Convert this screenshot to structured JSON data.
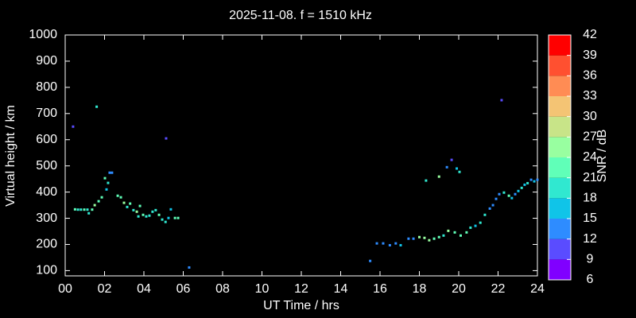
{
  "chart_data": {
    "type": "scatter",
    "title": "2025-11-08. f = 1510 kHz",
    "xlabel": "UT Time / hrs",
    "ylabel": "Virtual height / km",
    "clabel": "SNR / dB",
    "xlim": [
      0,
      24
    ],
    "xticks": [
      {
        "value": 0,
        "label": "00"
      },
      {
        "value": 2,
        "label": "02"
      },
      {
        "value": 4,
        "label": "04"
      },
      {
        "value": 6,
        "label": "06"
      },
      {
        "value": 8,
        "label": "08"
      },
      10,
      12,
      14,
      16,
      18,
      20,
      22,
      24
    ],
    "ylim": [
      80,
      1000
    ],
    "yticks": [
      100,
      200,
      300,
      400,
      500,
      600,
      700,
      800,
      900,
      1000
    ],
    "clim": [
      6,
      42
    ],
    "cticks": [
      6,
      9,
      12,
      15,
      18,
      21,
      24,
      27,
      30,
      33,
      36,
      39,
      42
    ],
    "colormap": [
      "#8000ff",
      "#5a4cff",
      "#2e8cff",
      "#10c4e8",
      "#30e8d0",
      "#60ffb8",
      "#98ffa0",
      "#c8e488",
      "#f4c474",
      "#ff8c54",
      "#ff5030",
      "#ff0000"
    ],
    "series": [
      {
        "name": "SNR",
        "x": [
          0.4,
          0.5,
          0.65,
          0.8,
          0.97,
          1.13,
          1.2,
          1.37,
          1.5,
          1.7,
          1.86,
          1.6,
          2.02,
          2.1,
          2.18,
          2.26,
          2.38,
          2.67,
          2.83,
          2.99,
          3.15,
          3.3,
          3.47,
          3.64,
          3.72,
          3.8,
          3.96,
          4.12,
          4.28,
          4.44,
          4.6,
          4.77,
          4.93,
          5.1,
          5.13,
          5.25,
          5.37,
          5.58,
          5.74,
          6.3,
          15.5,
          15.84,
          16.16,
          16.5,
          16.8,
          17.05,
          17.45,
          17.7,
          18.0,
          18.26,
          18.5,
          18.75,
          19.0,
          19.23,
          19.47,
          19.8,
          20.1,
          20.4,
          20.6,
          20.85,
          21.1,
          21.33,
          21.58,
          21.74,
          21.9,
          22.06,
          22.3,
          22.55,
          22.7,
          22.87,
          23.03,
          23.2,
          23.35,
          23.5,
          23.68,
          23.84,
          24.0,
          18.34,
          19.0,
          19.4,
          19.64,
          19.9,
          20.04,
          22.18
        ],
        "values": [
          650,
          334,
          333,
          333,
          333,
          333,
          319,
          333,
          350,
          365,
          380,
          726,
          453,
          410,
          435,
          474,
          474,
          386,
          380,
          359,
          343,
          356,
          331,
          325,
          307,
          347,
          313,
          307,
          310,
          325,
          331,
          313,
          295,
          286,
          605,
          301,
          334,
          301,
          301,
          112,
          137,
          204,
          204,
          197,
          204,
          197,
          222,
          222,
          228,
          225,
          216,
          222,
          228,
          234,
          252,
          246,
          234,
          246,
          264,
          271,
          283,
          313,
          337,
          350,
          374,
          392,
          398,
          386,
          377,
          392,
          404,
          416,
          428,
          434,
          447,
          441,
          447,
          444,
          459,
          495,
          523,
          490,
          477,
          751
        ],
        "snr": [
          11,
          21,
          20,
          19,
          22,
          20,
          18,
          22,
          24,
          23,
          22,
          20,
          21,
          16,
          19,
          14,
          14,
          23,
          22,
          24,
          20,
          23,
          19,
          24,
          19,
          21,
          22,
          19,
          20,
          18,
          20,
          21,
          18,
          19,
          9,
          17,
          17,
          21,
          23,
          12,
          12,
          13,
          14,
          13,
          14,
          15,
          13,
          13,
          25,
          26,
          24,
          23,
          22,
          20,
          24,
          22,
          21,
          22,
          18,
          16,
          19,
          20,
          13,
          14,
          13,
          14,
          19,
          21,
          15,
          14,
          16,
          19,
          15,
          18,
          13,
          16,
          14,
          18,
          24,
          14,
          11,
          16,
          18,
          11
        ]
      }
    ]
  }
}
